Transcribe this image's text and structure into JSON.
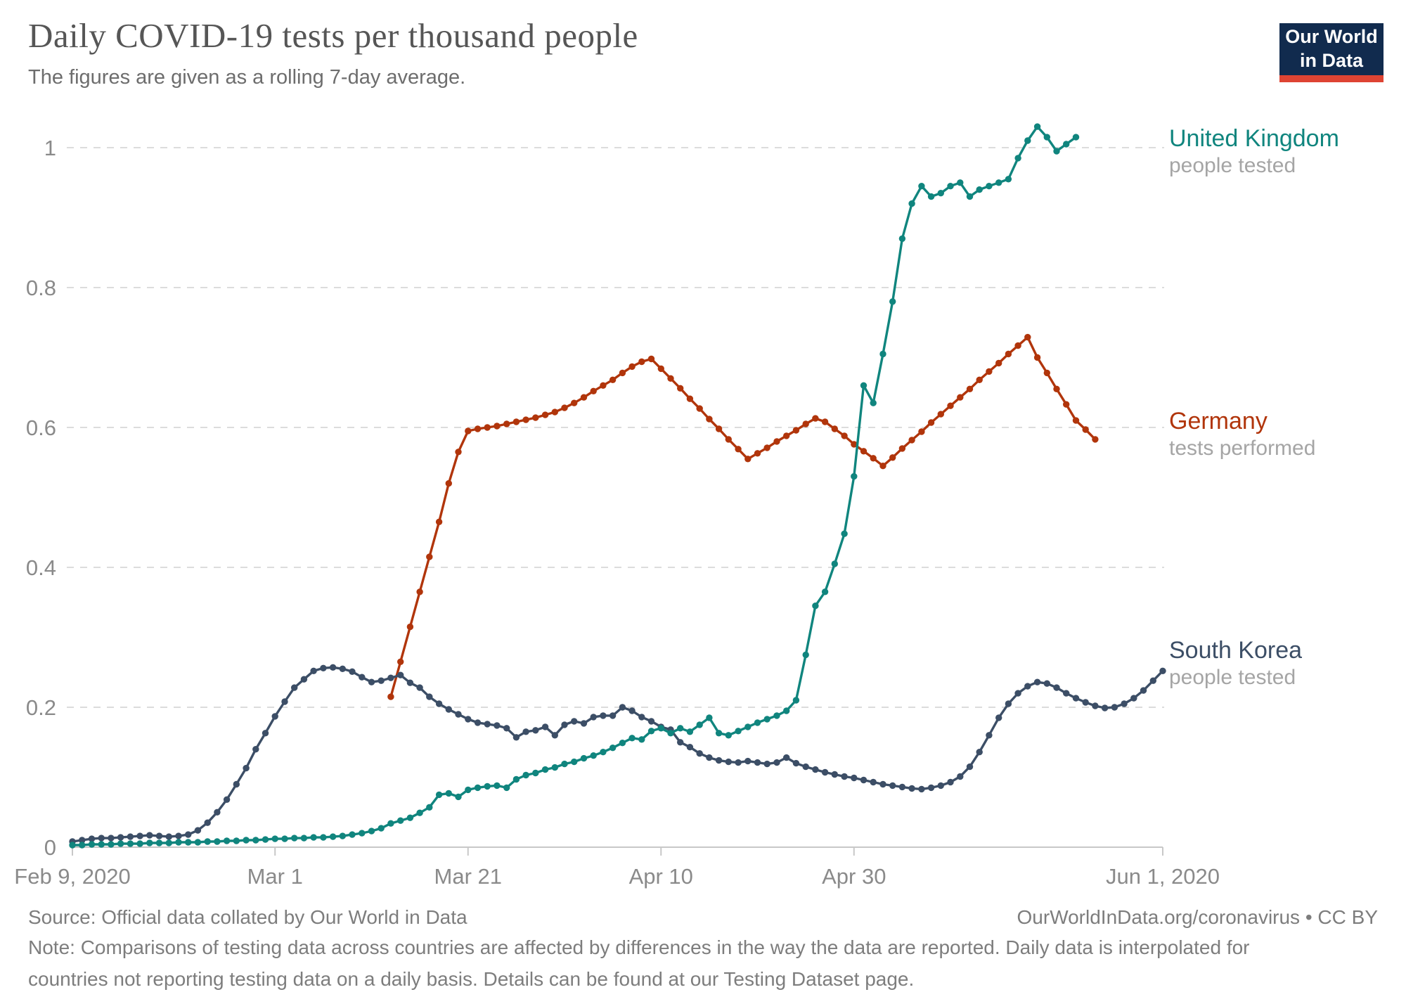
{
  "header": {
    "title": "Daily COVID-19 tests per thousand people",
    "subtitle": "The figures are given as a rolling 7-day average.",
    "logo": {
      "line1": "Our World",
      "line2": "in Data",
      "bg_color": "#112B4E",
      "accent_color": "#DE4433"
    }
  },
  "chart_data": {
    "type": "line",
    "title": "Daily COVID-19 tests per thousand people",
    "x_axis": {
      "start_date": "2020-02-09",
      "end_date": "2020-06-01",
      "tick_dates": [
        "2020-02-09",
        "2020-03-01",
        "2020-03-21",
        "2020-04-10",
        "2020-04-30",
        "2020-06-01"
      ],
      "tick_labels": [
        "Feb 9, 2020",
        "Mar 1",
        "Mar 21",
        "Apr 10",
        "Apr 30",
        "Jun 1, 2020"
      ]
    },
    "y_axis": {
      "range": [
        0,
        1.05
      ],
      "ticks": [
        0,
        0.2,
        0.4,
        0.6,
        0.8,
        1
      ],
      "tick_labels": [
        "0",
        "0.2",
        "0.4",
        "0.6",
        "0.8",
        "1"
      ],
      "gridlines": "dashed",
      "grid_color": "#dcdcdc",
      "label_color": "#8a8a8a"
    },
    "legend_position": "right-end-labels",
    "series": [
      {
        "name": "Germany",
        "sublabel": "tests performed",
        "color": "#B1350B",
        "start_date": "2020-03-13",
        "values": [
          0.215,
          0.265,
          0.315,
          0.365,
          0.415,
          0.465,
          0.52,
          0.565,
          0.595,
          0.598,
          0.6,
          0.602,
          0.605,
          0.608,
          0.611,
          0.614,
          0.618,
          0.622,
          0.628,
          0.635,
          0.643,
          0.652,
          0.66,
          0.668,
          0.678,
          0.687,
          0.694,
          0.698,
          0.684,
          0.67,
          0.656,
          0.641,
          0.627,
          0.612,
          0.598,
          0.583,
          0.569,
          0.555,
          0.563,
          0.571,
          0.58,
          0.588,
          0.596,
          0.605,
          0.613,
          0.608,
          0.598,
          0.588,
          0.576,
          0.566,
          0.556,
          0.545,
          0.557,
          0.57,
          0.582,
          0.594,
          0.607,
          0.619,
          0.631,
          0.643,
          0.655,
          0.668,
          0.68,
          0.692,
          0.705,
          0.717,
          0.729,
          0.7,
          0.678,
          0.655,
          0.633,
          0.61,
          0.597,
          0.583
        ]
      },
      {
        "name": "South Korea",
        "sublabel": "people tested",
        "color": "#3C4E66",
        "start_date": "2020-02-09",
        "values": [
          0.008,
          0.01,
          0.012,
          0.013,
          0.013,
          0.014,
          0.015,
          0.016,
          0.017,
          0.016,
          0.015,
          0.016,
          0.018,
          0.024,
          0.035,
          0.05,
          0.068,
          0.09,
          0.113,
          0.14,
          0.163,
          0.187,
          0.208,
          0.228,
          0.24,
          0.252,
          0.256,
          0.257,
          0.255,
          0.251,
          0.243,
          0.236,
          0.238,
          0.242,
          0.246,
          0.235,
          0.228,
          0.215,
          0.205,
          0.197,
          0.19,
          0.183,
          0.178,
          0.176,
          0.174,
          0.17,
          0.157,
          0.165,
          0.167,
          0.172,
          0.16,
          0.175,
          0.18,
          0.177,
          0.186,
          0.188,
          0.188,
          0.2,
          0.195,
          0.186,
          0.18,
          0.172,
          0.168,
          0.15,
          0.143,
          0.134,
          0.128,
          0.124,
          0.122,
          0.121,
          0.123,
          0.121,
          0.119,
          0.121,
          0.128,
          0.12,
          0.115,
          0.111,
          0.107,
          0.104,
          0.101,
          0.099,
          0.096,
          0.093,
          0.09,
          0.088,
          0.086,
          0.084,
          0.083,
          0.085,
          0.088,
          0.093,
          0.101,
          0.115,
          0.136,
          0.16,
          0.185,
          0.205,
          0.22,
          0.23,
          0.236,
          0.234,
          0.228,
          0.22,
          0.213,
          0.207,
          0.202,
          0.199,
          0.2,
          0.205,
          0.213,
          0.224,
          0.238,
          0.252
        ]
      },
      {
        "name": "United Kingdom",
        "sublabel": "people tested",
        "color": "#10857E",
        "start_date": "2020-02-09",
        "values": [
          0.003,
          0.003,
          0.004,
          0.004,
          0.004,
          0.005,
          0.005,
          0.005,
          0.006,
          0.006,
          0.006,
          0.007,
          0.007,
          0.007,
          0.008,
          0.008,
          0.009,
          0.009,
          0.01,
          0.01,
          0.011,
          0.012,
          0.012,
          0.013,
          0.013,
          0.014,
          0.014,
          0.015,
          0.016,
          0.018,
          0.02,
          0.023,
          0.027,
          0.034,
          0.038,
          0.042,
          0.049,
          0.057,
          0.075,
          0.077,
          0.072,
          0.082,
          0.085,
          0.087,
          0.088,
          0.085,
          0.097,
          0.103,
          0.106,
          0.111,
          0.114,
          0.119,
          0.122,
          0.127,
          0.131,
          0.136,
          0.142,
          0.149,
          0.156,
          0.154,
          0.166,
          0.17,
          0.163,
          0.17,
          0.165,
          0.175,
          0.185,
          0.163,
          0.16,
          0.166,
          0.172,
          0.178,
          0.183,
          0.188,
          0.195,
          0.21,
          0.275,
          0.345,
          0.365,
          0.405,
          0.448,
          0.53,
          0.66,
          0.635,
          0.705,
          0.78,
          0.87,
          0.92,
          0.945,
          0.93,
          0.935,
          0.945,
          0.95,
          0.93,
          0.94,
          0.945,
          0.95,
          0.955,
          0.985,
          1.01,
          1.03,
          1.015,
          0.995,
          1.005,
          1.015
        ]
      }
    ]
  },
  "footer": {
    "source": "Source: Official data collated by Our World in Data",
    "link": "OurWorldInData.org/coronavirus • CC BY",
    "note_lines": [
      "Note: Comparisons of testing data across countries are affected by differences in the way the data are reported. Daily data is interpolated for",
      "countries not reporting testing data on a daily basis. Details can be found at our Testing Dataset page."
    ]
  }
}
